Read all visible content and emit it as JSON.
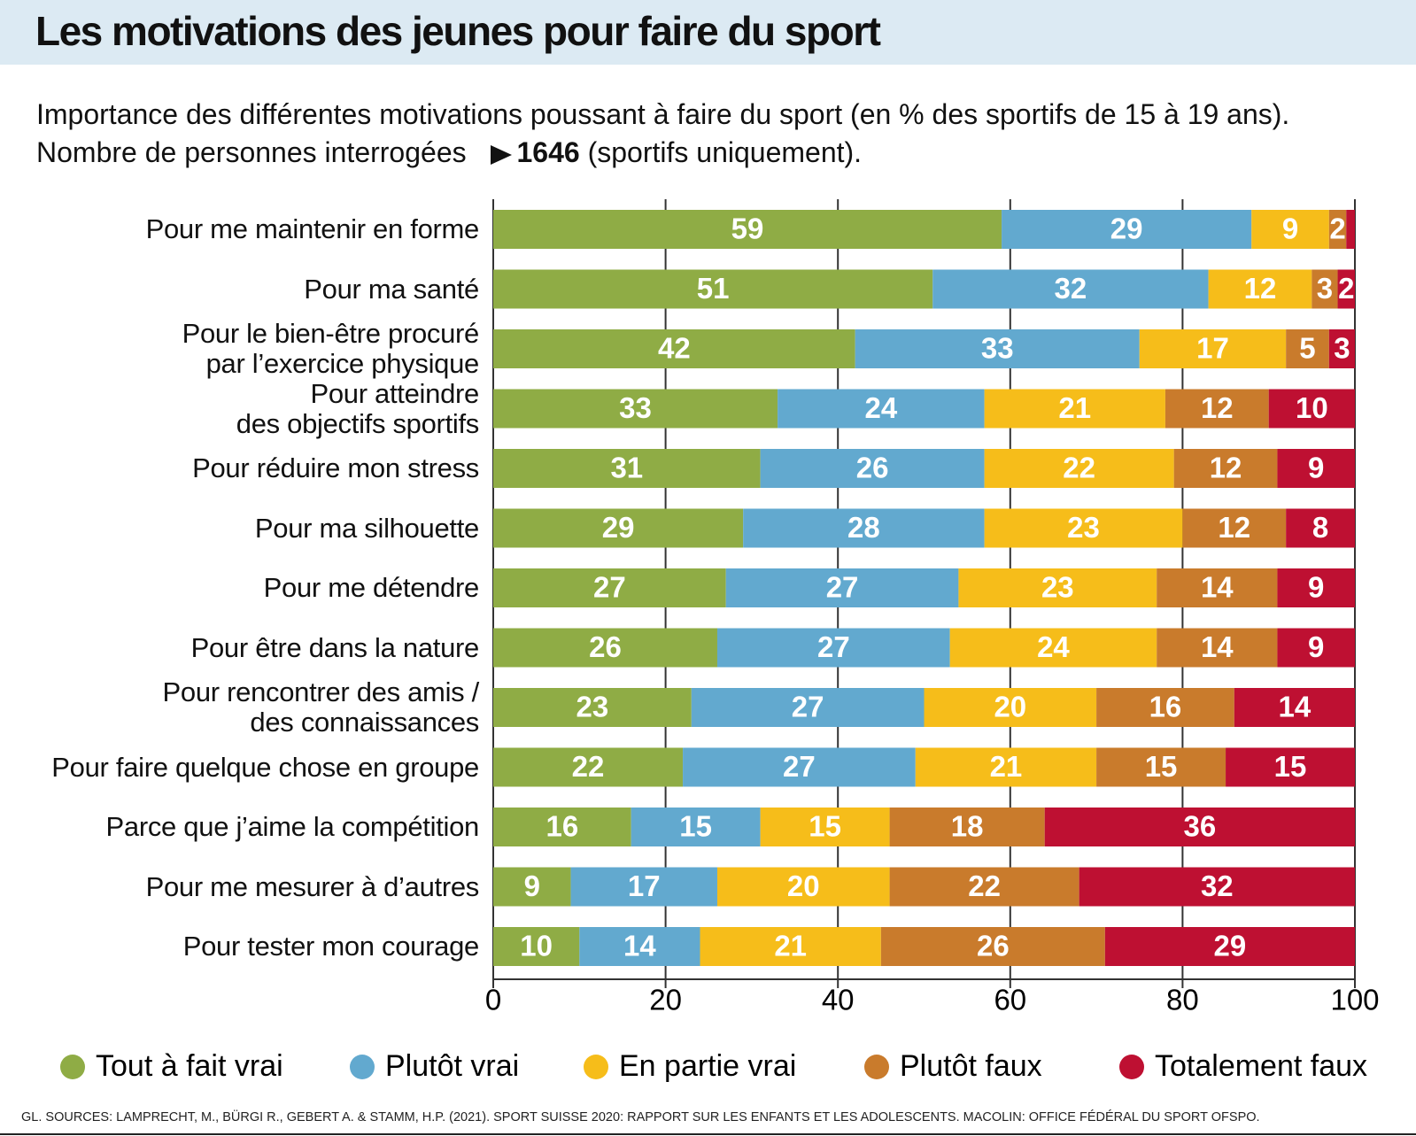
{
  "chart_data": {
    "type": "stacked-bar-horizontal",
    "title": "Les motivations des jeunes pour faire du sport",
    "subtitle": "Importance des différentes motivations poussant à faire du sport (en % des sportifs de 15 à 19 ans).",
    "note": {
      "prefix": "Nombre de personnes interrogées",
      "count": "1646",
      "suffix": "(sportifs  uniquement)."
    },
    "categories": [
      "Pour me maintenir en forme",
      "Pour ma santé",
      "Pour le bien-être procuré\npar l’exercice physique",
      "Pour atteindre\ndes objectifs sportifs",
      "Pour réduire mon stress",
      "Pour ma silhouette",
      "Pour me détendre",
      "Pour être dans la nature",
      "Pour rencontrer des amis /\ndes connaissances",
      "Pour faire quelque chose en groupe",
      "Parce que j’aime la compétition",
      "Pour me mesurer à d’autres",
      "Pour tester mon courage"
    ],
    "series": [
      {
        "name": "Tout à fait vrai",
        "color": "#8fac45",
        "values": [
          59,
          51,
          42,
          33,
          31,
          29,
          27,
          26,
          23,
          22,
          16,
          9,
          10
        ]
      },
      {
        "name": "Plutôt vrai",
        "color": "#62a9cf",
        "values": [
          29,
          32,
          33,
          24,
          26,
          28,
          27,
          27,
          27,
          27,
          15,
          17,
          14
        ]
      },
      {
        "name": "En partie vrai",
        "color": "#f6bd1a",
        "values": [
          9,
          12,
          17,
          21,
          22,
          23,
          23,
          24,
          20,
          21,
          15,
          20,
          21
        ]
      },
      {
        "name": "Plutôt faux",
        "color": "#c97b2c",
        "values": [
          2,
          3,
          5,
          12,
          12,
          12,
          14,
          14,
          16,
          15,
          18,
          22,
          26
        ]
      },
      {
        "name": "Totalement faux",
        "color": "#be1032",
        "values": [
          1,
          2,
          3,
          10,
          9,
          8,
          9,
          9,
          14,
          15,
          36,
          32,
          29
        ]
      }
    ],
    "xlim": [
      0,
      100
    ],
    "xticks": [
      0,
      20,
      40,
      60,
      80,
      100
    ],
    "grid": true,
    "source": "GL. SOURCES: LAMPRECHT, M., BÜRGI R., GEBERT A. & STAMM, H.P. (2021). SPORT SUISSE 2020: RAPPORT SUR LES ENFANTS ET LES ADOLESCENTS. MACOLIN: OFFICE FÉDÉRAL DU SPORT OFSPO."
  }
}
